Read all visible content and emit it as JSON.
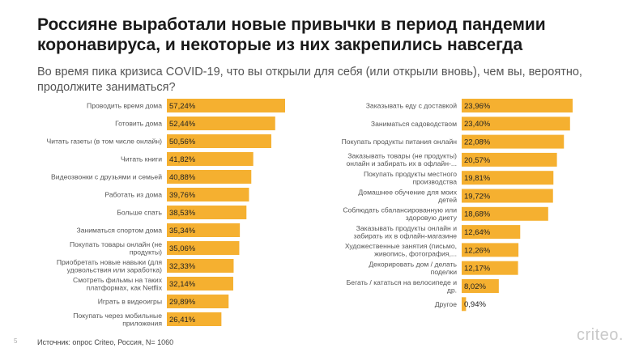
{
  "title": "Россияне выработали новые привычки в период пандемии коронавируса, и некоторые из них закрепились навсегда",
  "subtitle": "Во время пика кризиса COVID-19, что вы открыли для себя (или открыли вновь), чем вы, вероятно, продолжите заниматься?",
  "footer": {
    "page_number": "5",
    "source": "Источник: опрос Criteo, Россия, N= 1060",
    "logo": "criteo."
  },
  "colors": {
    "bar": "#F5B030",
    "text": "#555555"
  },
  "chart_data": [
    {
      "type": "bar",
      "orientation": "horizontal",
      "series": "left",
      "title": "",
      "xlabel": "",
      "ylabel": "",
      "xlim": [
        0,
        57.24
      ],
      "categories": [
        [
          "Проводить время дома"
        ],
        [
          "Готовить дома"
        ],
        [
          "Читать газеты (в том числе онлайн)"
        ],
        [
          "Читать книги"
        ],
        [
          "Видеозвонки с друзьями и семьей"
        ],
        [
          "Работать из дома"
        ],
        [
          "Больше спать"
        ],
        [
          "Заниматься спортом дома"
        ],
        [
          "Покупать товары онлайн (не",
          "продукты)"
        ],
        [
          "Приобретать новые навыки (для",
          "удовольствия или заработка)"
        ],
        [
          "Смотреть фильмы на таких",
          "платформах, как Netflix"
        ],
        [
          "Играть в видеоигры"
        ],
        [
          "Покупать через мобильные",
          "приложения"
        ]
      ],
      "values": [
        57.24,
        52.44,
        50.56,
        41.82,
        40.88,
        39.76,
        38.53,
        35.34,
        35.06,
        32.33,
        32.14,
        29.89,
        26.41
      ],
      "value_labels": [
        "57,24%",
        "52,44%",
        "50,56%",
        "41,82%",
        "40,88%",
        "39,76%",
        "38,53%",
        "35,34%",
        "35,06%",
        "32,33%",
        "32,14%",
        "29,89%",
        "26,41%"
      ]
    },
    {
      "type": "bar",
      "orientation": "horizontal",
      "series": "right",
      "title": "",
      "xlabel": "",
      "ylabel": "",
      "xlim": [
        0,
        23.96
      ],
      "categories": [
        [
          "Заказывать еду с доставкой"
        ],
        [
          "Заниматься садоводством"
        ],
        [
          "Покупать продукты питания онлайн"
        ],
        [
          "Заказывать товары (не продукты)",
          "онлайн и забирать их в офлайн-..."
        ],
        [
          "Покупать продукты местного",
          "производства"
        ],
        [
          "Домашнее обучение для моих",
          "детей"
        ],
        [
          "Соблюдать сбалансированную или",
          "здоровую диету"
        ],
        [
          "Заказывать продукты онлайн и",
          "забирать их в офлайн-магазине"
        ],
        [
          "Художественные занятия (письмо,",
          "живопись, фотография,..."
        ],
        [
          "Декорировать дом / делать",
          "поделки"
        ],
        [
          "Бегать / кататься на велосипеде и",
          "др."
        ],
        [
          "Другое"
        ]
      ],
      "values": [
        23.96,
        23.4,
        22.08,
        20.57,
        19.81,
        19.72,
        18.68,
        12.64,
        12.26,
        12.17,
        8.02,
        0.94
      ],
      "value_labels": [
        "23,96%",
        "23,40%",
        "22,08%",
        "20,57%",
        "19,81%",
        "19,72%",
        "18,68%",
        "12,64%",
        "12,26%",
        "12,17%",
        "8,02%",
        "0,94%"
      ]
    }
  ]
}
